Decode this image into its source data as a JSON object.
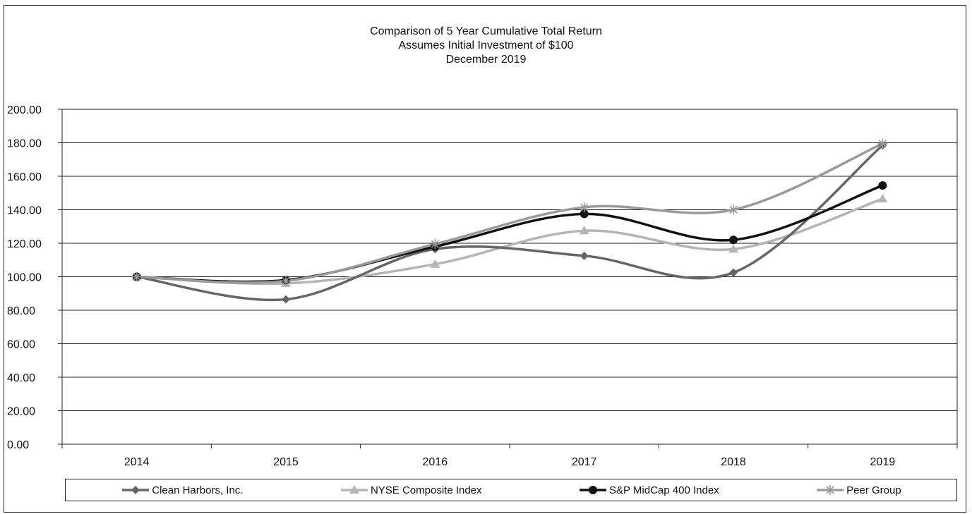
{
  "chart_data": {
    "type": "line",
    "title": "Comparison of 5 Year Cumulative Total Return",
    "subtitle_lines": [
      "Assumes Initial Investment of $100",
      "December 2019"
    ],
    "xlabel": "",
    "ylabel": "",
    "categories": [
      "2014",
      "2015",
      "2016",
      "2017",
      "2018",
      "2019"
    ],
    "ylim": [
      0,
      200
    ],
    "yticks": [
      "0.00",
      "20.00",
      "40.00",
      "60.00",
      "80.00",
      "100.00",
      "120.00",
      "140.00",
      "160.00",
      "180.00",
      "200.00"
    ],
    "grid": "horizontal",
    "legend_position": "bottom",
    "series": [
      {
        "name": "Clean Harbors, Inc.",
        "marker": "diamond",
        "color": "#666666",
        "values": [
          100.0,
          86.5,
          116.5,
          112.5,
          102.5,
          178.5
        ]
      },
      {
        "name": "NYSE Composite Index",
        "marker": "triangle",
        "color": "#b5b5b5",
        "values": [
          100.0,
          96.0,
          107.5,
          127.5,
          116.5,
          146.5
        ]
      },
      {
        "name": "S&P MidCap 400 Index",
        "marker": "circle",
        "color": "#111111",
        "values": [
          100.0,
          98.0,
          118.0,
          137.5,
          122.0,
          154.5
        ]
      },
      {
        "name": "Peer Group",
        "marker": "star",
        "color": "#9a9a9a",
        "values": [
          100.0,
          97.5,
          119.5,
          141.5,
          140.0,
          179.5
        ]
      }
    ]
  }
}
